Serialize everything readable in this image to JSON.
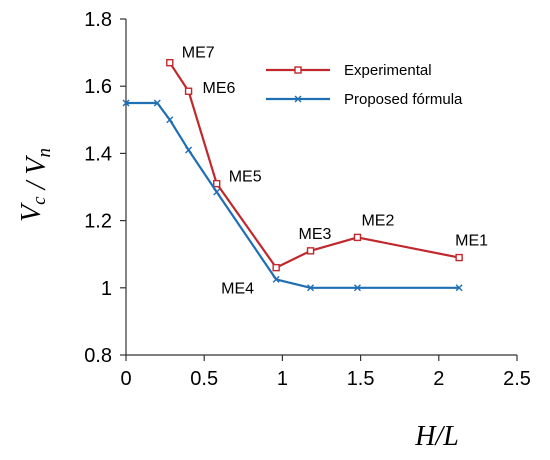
{
  "chart_data": {
    "type": "line",
    "title": "",
    "xlabel": "H/L",
    "ylabel": "Vc / Vn",
    "xlim": [
      0,
      2.5
    ],
    "ylim": [
      0.8,
      1.8
    ],
    "x_ticks": [
      "0",
      "0.5",
      "1",
      "1.5",
      "2",
      "2.5"
    ],
    "y_ticks": [
      "0.8",
      "1",
      "1.2",
      "1.4",
      "1.6",
      "1.8"
    ],
    "grid": false,
    "legend_position": "top-right",
    "series": [
      {
        "name": "Experimental",
        "color": "#c0282d",
        "marker": "square",
        "points": [
          {
            "x": 0.28,
            "y": 1.67,
            "label": "ME7"
          },
          {
            "x": 0.4,
            "y": 1.585,
            "label": "ME6"
          },
          {
            "x": 0.58,
            "y": 1.31,
            "label": "ME5"
          },
          {
            "x": 0.96,
            "y": 1.06,
            "label": "ME4"
          },
          {
            "x": 1.18,
            "y": 1.11,
            "label": "ME3"
          },
          {
            "x": 1.48,
            "y": 1.15,
            "label": "ME2"
          },
          {
            "x": 2.13,
            "y": 1.09,
            "label": "ME1"
          }
        ]
      },
      {
        "name": "Proposed fórmula",
        "color": "#1f6fb5",
        "marker": "x",
        "points": [
          {
            "x": 0.0,
            "y": 1.55
          },
          {
            "x": 0.2,
            "y": 1.55
          },
          {
            "x": 0.28,
            "y": 1.5
          },
          {
            "x": 0.4,
            "y": 1.41
          },
          {
            "x": 0.58,
            "y": 1.285
          },
          {
            "x": 0.96,
            "y": 1.025
          },
          {
            "x": 1.18,
            "y": 1.0
          },
          {
            "x": 1.48,
            "y": 1.0
          },
          {
            "x": 2.13,
            "y": 1.0
          }
        ]
      }
    ]
  }
}
